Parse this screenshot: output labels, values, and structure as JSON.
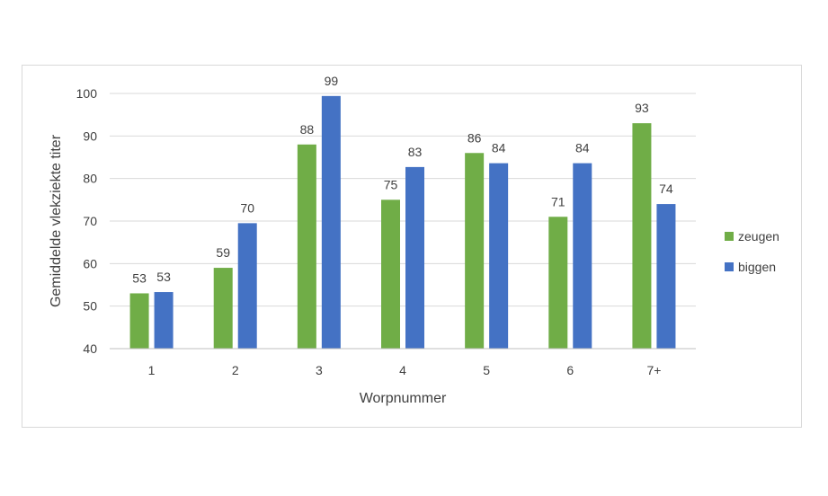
{
  "chart_data": {
    "type": "bar",
    "categories": [
      "1",
      "2",
      "3",
      "4",
      "5",
      "6",
      "7+"
    ],
    "series": [
      {
        "name": "zeugen",
        "color": "#70ad47",
        "values": [
          53,
          59,
          88,
          75,
          86,
          71,
          93
        ],
        "labels": [
          "53",
          "59",
          "88",
          "75",
          "86",
          "71",
          "93"
        ]
      },
      {
        "name": "biggen",
        "color": "#4472c4",
        "values": [
          53.3,
          69.5,
          99.4,
          82.7,
          83.6,
          83.6,
          74
        ],
        "labels": [
          "53",
          "70",
          "99",
          "83",
          "84",
          "84",
          "74"
        ]
      }
    ],
    "xlabel": "Worpnummer",
    "ylabel": "Gemiddelde vlekziekte titer",
    "ylim": [
      40,
      100
    ],
    "yticks": [
      "40",
      "50",
      "60",
      "70",
      "80",
      "90",
      "100"
    ],
    "grid": true,
    "legend": "right"
  }
}
